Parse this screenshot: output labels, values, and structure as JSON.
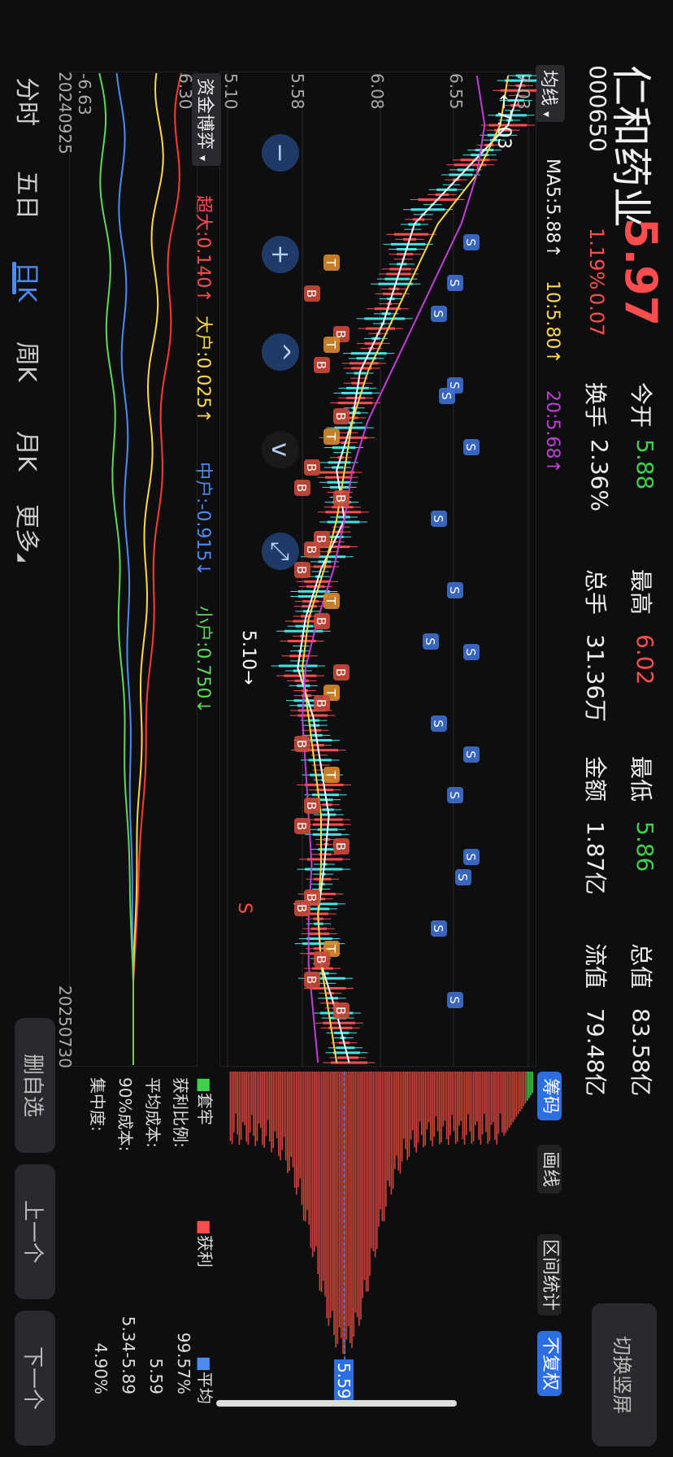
{
  "stock": {
    "name": "仁和药业",
    "code": "000650",
    "price": "5.97",
    "change": "0.07",
    "change_pct": "1.19%"
  },
  "stats": [
    {
      "label": "今开",
      "value": "5.88",
      "color": "#3ed14a"
    },
    {
      "label": "最高",
      "value": "6.02",
      "color": "#ff4d4d"
    },
    {
      "label": "最低",
      "value": "5.86",
      "color": "#3ed14a"
    },
    {
      "label": "总值",
      "value": "83.58亿",
      "color": "#eeeeee"
    },
    {
      "label": "换手",
      "value": "2.36%",
      "color": "#eeeeee"
    },
    {
      "label": "总手",
      "value": "31.36万",
      "color": "#eeeeee"
    },
    {
      "label": "金额",
      "value": "1.87亿",
      "color": "#eeeeee"
    },
    {
      "label": "流值",
      "value": "79.48亿",
      "color": "#eeeeee"
    }
  ],
  "switch_screen": "切换竖屏",
  "chip_buttons": {
    "chip": "筹码",
    "draw": "画线",
    "range": "区间统计",
    "adjust": "不复权"
  },
  "ma": {
    "selector": "均线",
    "ma5": "MA5:5.88↑",
    "ma10": "10:5.80↑",
    "ma20": "20:5.68↑"
  },
  "y_axis": [
    "7.03",
    "6.55",
    "6.08",
    "5.58",
    "5.10"
  ],
  "annotations": {
    "high": "←7.03",
    "low": "5.10→",
    "s_marker": "S"
  },
  "fund": {
    "selector": "资金博弈",
    "super": "超大:0.140↑",
    "large": "大户:0.025↑",
    "mid": "中户:-0.915↓",
    "small": "小户:0.750↓",
    "ymax": "6.30",
    "ymin": "-6.63"
  },
  "dates": {
    "start": "20240925",
    "end": "20250730"
  },
  "chips": {
    "legend_trapped": "套牢",
    "legend_profit": "获利",
    "legend_avg": "平均",
    "avg_tag": "5.59",
    "rows": [
      {
        "label": "获利比例:",
        "value": "99.57%"
      },
      {
        "label": "平均成本:",
        "value": "5.59"
      },
      {
        "label": "90%成本:",
        "value": "5.34-5.89"
      },
      {
        "label": "集中度:",
        "value": "4.90%"
      }
    ]
  },
  "tabs": [
    "分时",
    "五日",
    "日K",
    "周K",
    "月K",
    "更多"
  ],
  "active_tab": "日K",
  "side_buttons": {
    "remove": "删自选",
    "prev": "上一个",
    "next": "下一个"
  },
  "chart_data": {
    "type": "candlestick",
    "x_range": [
      "20240925",
      "20250730"
    ],
    "ylim": [
      5.1,
      7.03
    ],
    "y_ticks": [
      7.03,
      6.55,
      6.08,
      5.58,
      5.1
    ],
    "series": [
      {
        "name": "MA5",
        "values": [
          7.0,
          6.9,
          6.6,
          6.3,
          6.2,
          6.1,
          5.95,
          5.9,
          5.8,
          5.85,
          5.7,
          5.6,
          5.55,
          5.65,
          5.7,
          5.75,
          5.72,
          5.68,
          5.7,
          5.8,
          5.88
        ]
      },
      {
        "name": "MA10",
        "values": [
          6.9,
          6.85,
          6.7,
          6.45,
          6.3,
          6.15,
          6.0,
          5.9,
          5.85,
          5.8,
          5.72,
          5.62,
          5.58,
          5.62,
          5.66,
          5.7,
          5.7,
          5.68,
          5.7,
          5.75,
          5.8
        ]
      },
      {
        "name": "MA20",
        "values": [
          6.7,
          6.75,
          6.7,
          6.6,
          6.45,
          6.3,
          6.15,
          6.0,
          5.9,
          5.85,
          5.78,
          5.68,
          5.6,
          5.58,
          5.6,
          5.62,
          5.64,
          5.62,
          5.62,
          5.65,
          5.68
        ]
      }
    ]
  }
}
